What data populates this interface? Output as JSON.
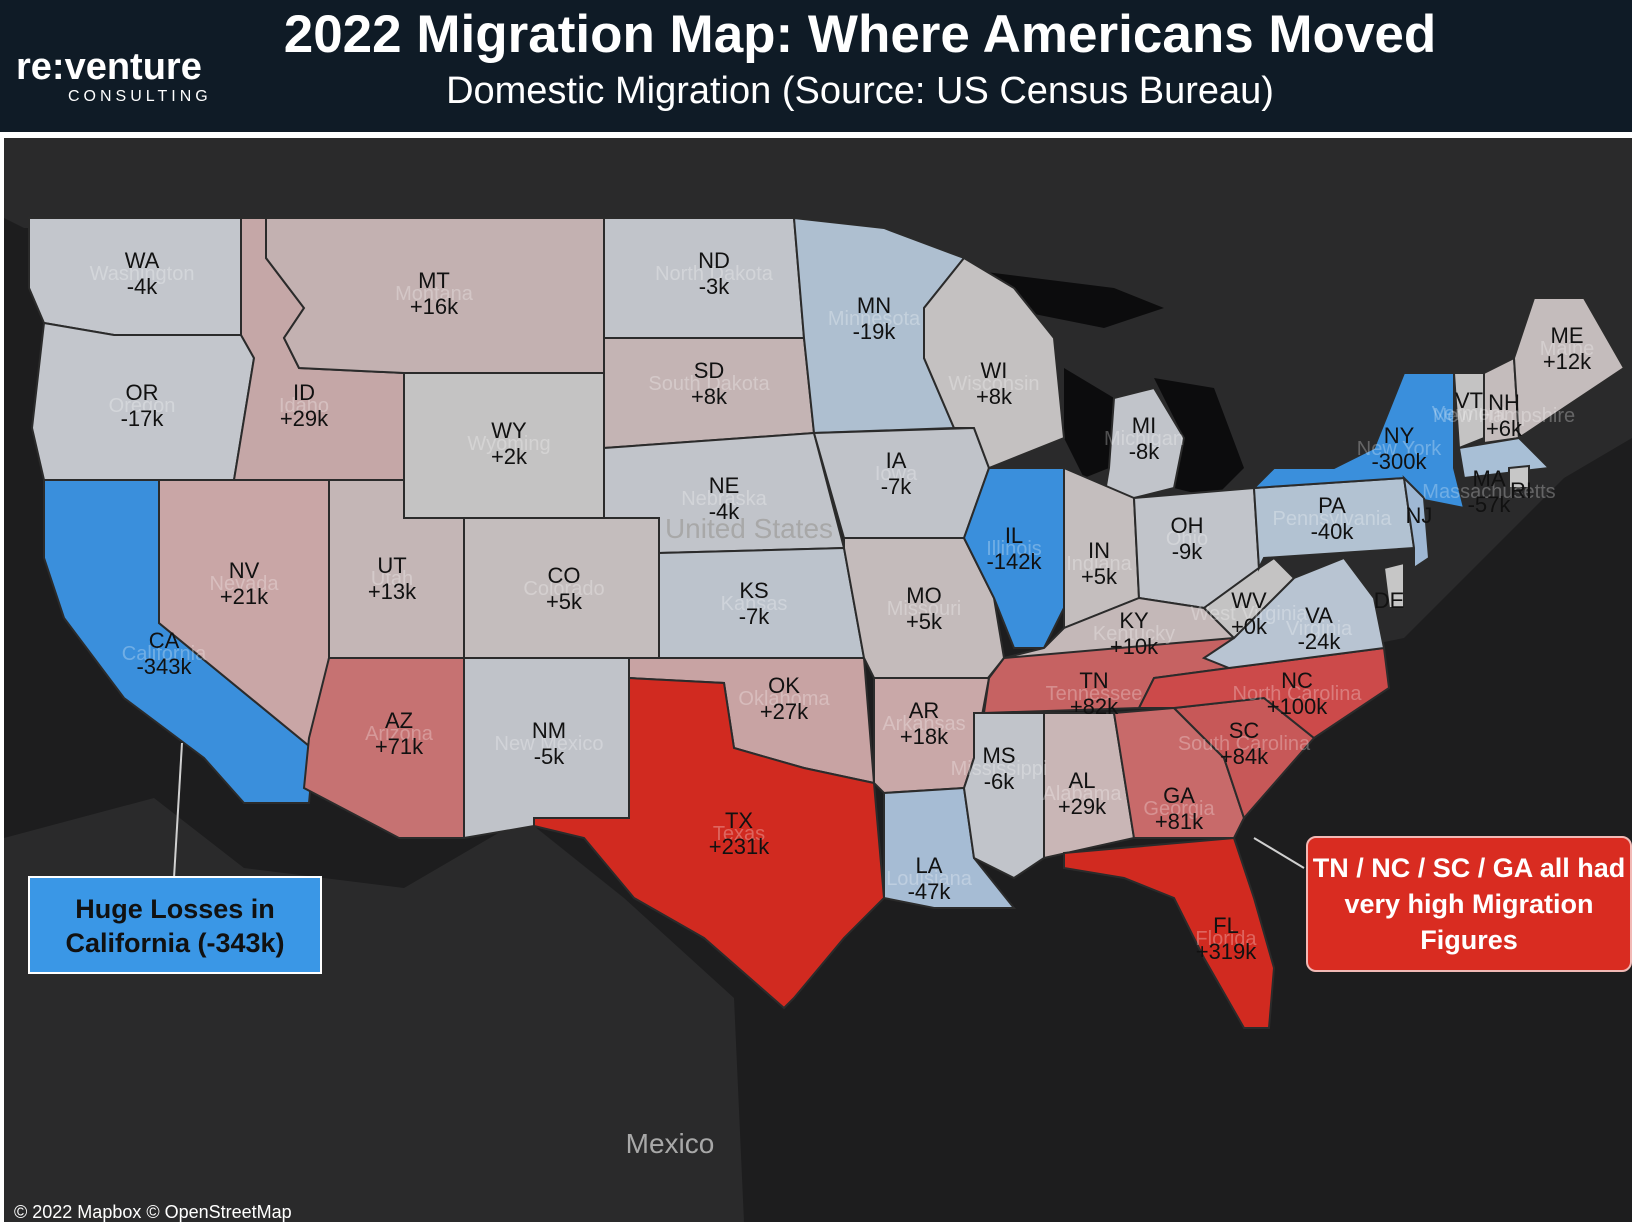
{
  "header": {
    "title": "2022 Migration Map: Where Americans Moved",
    "subtitle": "Domestic Migration (Source: US Census Bureau)",
    "logo_main": "re:venture",
    "logo_sub": "CONSULTING"
  },
  "map": {
    "country_label": "United States",
    "other_label": "Mexico",
    "attribution": "© 2022 Mapbox © OpenStreetMap"
  },
  "callouts": {
    "california": "Huge Losses in California (-343k)",
    "southeast": "TN / NC / SC / GA all had very high Migration Figures"
  },
  "colors": {
    "strong_gain": "#d12a20",
    "gain": "#c46060",
    "mild_gain": "#c9a0a0",
    "slight_gain": "#c4b4b4",
    "neutral": "#bfc2c8",
    "mild_loss": "#a9bcd0",
    "loss": "#3a8fdc"
  },
  "states": [
    {
      "abbr": "WA",
      "name": "Washington",
      "value": "-4k"
    },
    {
      "abbr": "OR",
      "name": "Oregon",
      "value": "-17k"
    },
    {
      "abbr": "CA",
      "name": "California",
      "value": "-343k"
    },
    {
      "abbr": "NV",
      "name": "Nevada",
      "value": "+21k"
    },
    {
      "abbr": "ID",
      "name": "Idaho",
      "value": "+29k"
    },
    {
      "abbr": "MT",
      "name": "Montana",
      "value": "+16k"
    },
    {
      "abbr": "WY",
      "name": "Wyoming",
      "value": "+2k"
    },
    {
      "abbr": "UT",
      "name": "Utah",
      "value": "+13k"
    },
    {
      "abbr": "AZ",
      "name": "Arizona",
      "value": "+71k"
    },
    {
      "abbr": "CO",
      "name": "Colorado",
      "value": "+5k"
    },
    {
      "abbr": "NM",
      "name": "New Mexico",
      "value": "-5k"
    },
    {
      "abbr": "ND",
      "name": "North Dakota",
      "value": "-3k"
    },
    {
      "abbr": "SD",
      "name": "South Dakota",
      "value": "+8k"
    },
    {
      "abbr": "NE",
      "name": "Nebraska",
      "value": "-4k"
    },
    {
      "abbr": "KS",
      "name": "Kansas",
      "value": "-7k"
    },
    {
      "abbr": "OK",
      "name": "Oklahoma",
      "value": "+27k"
    },
    {
      "abbr": "TX",
      "name": "Texas",
      "value": "+231k"
    },
    {
      "abbr": "MN",
      "name": "Minnesota",
      "value": "-19k"
    },
    {
      "abbr": "IA",
      "name": "Iowa",
      "value": "-7k"
    },
    {
      "abbr": "MO",
      "name": "Missouri",
      "value": "+5k"
    },
    {
      "abbr": "AR",
      "name": "Arkansas",
      "value": "+18k"
    },
    {
      "abbr": "LA",
      "name": "Louisiana",
      "value": "-47k"
    },
    {
      "abbr": "WI",
      "name": "Wisconsin",
      "value": "+8k"
    },
    {
      "abbr": "IL",
      "name": "Illinois",
      "value": "-142k"
    },
    {
      "abbr": "MI",
      "name": "Michigan",
      "value": "-8k"
    },
    {
      "abbr": "IN",
      "name": "Indiana",
      "value": "+5k"
    },
    {
      "abbr": "OH",
      "name": "Ohio",
      "value": "-9k"
    },
    {
      "abbr": "KY",
      "name": "Kentucky",
      "value": "+10k"
    },
    {
      "abbr": "TN",
      "name": "Tennessee",
      "value": "+82k"
    },
    {
      "abbr": "MS",
      "name": "Mississippi",
      "value": "-6k"
    },
    {
      "abbr": "AL",
      "name": "Alabama",
      "value": "+29k"
    },
    {
      "abbr": "GA",
      "name": "Georgia",
      "value": "+81k"
    },
    {
      "abbr": "FL",
      "name": "Florida",
      "value": "+319k"
    },
    {
      "abbr": "SC",
      "name": "South Carolina",
      "value": "+84k"
    },
    {
      "abbr": "NC",
      "name": "North Carolina",
      "value": "+100k"
    },
    {
      "abbr": "VA",
      "name": "Virginia",
      "value": "-24k"
    },
    {
      "abbr": "WV",
      "name": "West Virginia",
      "value": "+0k"
    },
    {
      "abbr": "PA",
      "name": "Pennsylvania",
      "value": "-40k"
    },
    {
      "abbr": "NY",
      "name": "New York",
      "value": "-300k"
    },
    {
      "abbr": "VT",
      "name": "Vermont",
      "value": ""
    },
    {
      "abbr": "NH",
      "name": "New Hampshire",
      "value": "+6k"
    },
    {
      "abbr": "ME",
      "name": "Maine",
      "value": "+12k"
    },
    {
      "abbr": "MA",
      "name": "Massachusetts",
      "value": "-57k"
    },
    {
      "abbr": "RI",
      "name": "",
      "value": ""
    },
    {
      "abbr": "NJ",
      "name": "",
      "value": ""
    },
    {
      "abbr": "DE",
      "name": "",
      "value": ""
    }
  ]
}
